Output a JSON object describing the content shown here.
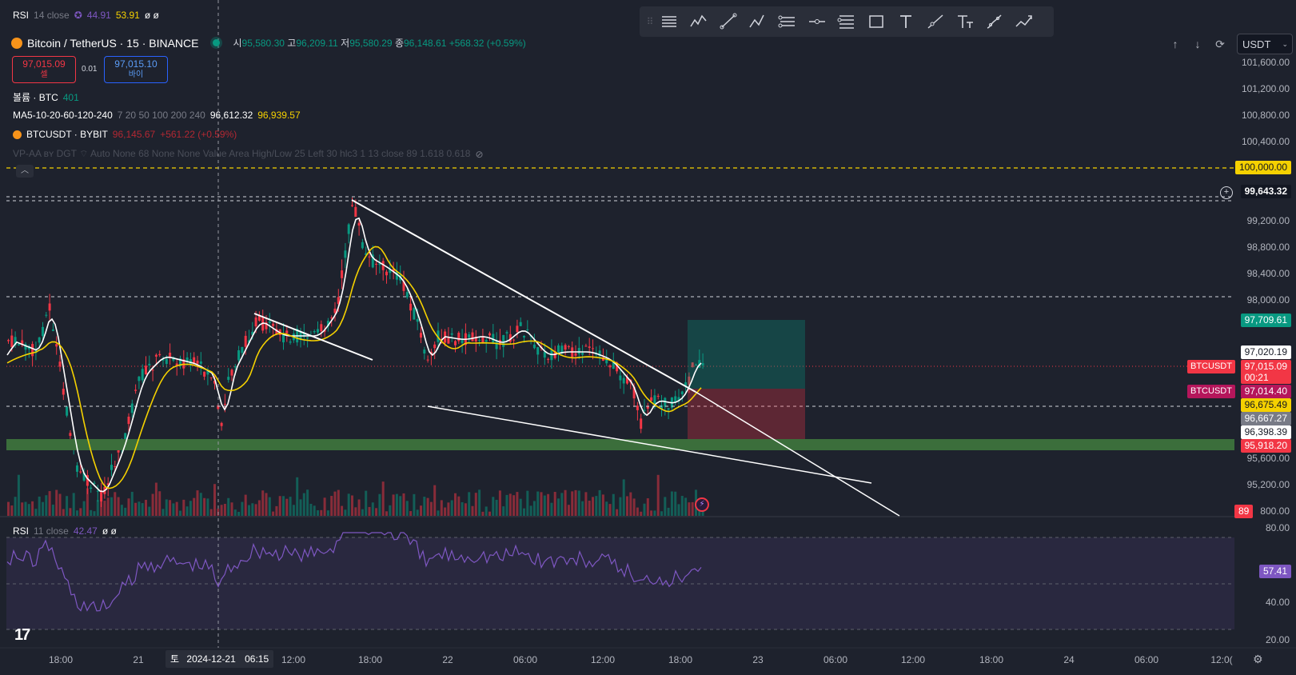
{
  "top_indicator": {
    "name": "RSI",
    "params": "14 close",
    "value1": "44.91",
    "value2": "53.91",
    "extra": "ø ø"
  },
  "symbol": {
    "title": "Bitcoin / TetherUS · 15 · BINANCE",
    "o_label": "시",
    "o_value": "95,580.30",
    "h_label": "고",
    "h_value": "96,209.11",
    "l_label": "저",
    "l_value": "95,580.29",
    "c_label": "종",
    "c_value": "96,148.61",
    "change": "+568.32 (+0.59%)"
  },
  "trade": {
    "sell_price": "97,015.09",
    "sell_label": "셀",
    "spread": "0.01",
    "buy_price": "97,015.10",
    "buy_label": "바이"
  },
  "legends": {
    "volume": {
      "name": "볼륨 · BTC",
      "value": "401"
    },
    "ma": {
      "name": "MA5-10-20-60-120-240",
      "params": "7 20 50 100 200 240",
      "value1": "96,612.32",
      "value2": "96,939.57"
    },
    "bybit": {
      "name": "BTCUSDT · BYBIT",
      "value": "96,145.67",
      "change": "+561.22 (+0.59%)"
    },
    "vpaa": {
      "text": "VP-AA ʙʏ DGT ⌔ Auto None 68 None None Value Area High/Low 25 Left 30 hlc3 1 13 close 89 1.618 0.618"
    }
  },
  "toolbar": {
    "tools": [
      "horizontal-lines-icon",
      "elliott-wave-icon",
      "trend-line-icon",
      "abc-pattern-icon",
      "parallel-channel-icon",
      "horizontal-ray-icon",
      "fib-retracement-icon",
      "rectangle-icon",
      "text-tool-icon",
      "ray-icon",
      "text-note-icon",
      "brush-icon",
      "path-icon"
    ]
  },
  "currency": {
    "selected": "USDT"
  },
  "price_axis": {
    "labels": [
      "101,600.00",
      "101,200.00",
      "100,800.00",
      "100,400.00",
      "99,200.00",
      "98,800.00",
      "98,400.00",
      "98,000.00",
      "95,600.00",
      "95,200.00",
      "800.00"
    ],
    "rsi_labels": [
      "80.00",
      "40.00",
      "20.00"
    ]
  },
  "price_tags": {
    "level_100k": "100,000.00",
    "high_mark": "99,643.32",
    "take_profit": "97,709.61",
    "entry": "97,020.19",
    "last_price": "97,015.09",
    "countdown": "00:21",
    "bybit_price": "97,014.40",
    "ma_yellow": "96,675.49",
    "ma_white": "96,667.27",
    "level_low": "96,398.39",
    "support": "95,918.20",
    "volume_tag": "89",
    "rsi_value": "57.41",
    "symbol_tag1": "BTCUSDT",
    "symbol_tag2": "BTCUSDT"
  },
  "rsi_panel": {
    "name": "RSI",
    "params": "11 close",
    "value": "42.47",
    "extra": "ø ø"
  },
  "time_axis": {
    "labels": [
      "18:00",
      "21",
      "12:00",
      "18:00",
      "22",
      "06:00",
      "12:00",
      "18:00",
      "23",
      "06:00",
      "12:00",
      "18:00",
      "24",
      "06:00",
      "12:0("
    ],
    "cursor_day": "토",
    "cursor_date": "2024-12-21",
    "cursor_time": "06:15"
  },
  "colors": {
    "background": "#1e222d",
    "up": "#089981",
    "down": "#f23645",
    "ma_yellow": "#f5d100",
    "rsi": "#7e57c2",
    "support_zone": "#3b6e3b"
  }
}
